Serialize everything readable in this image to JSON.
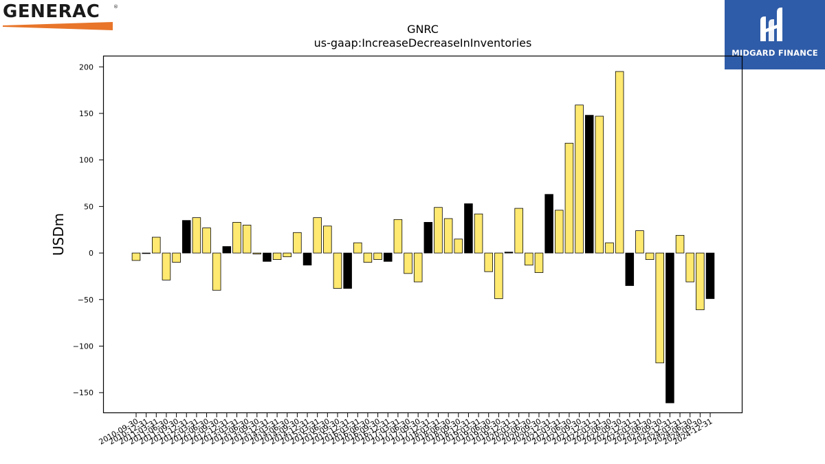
{
  "logos": {
    "left_text": "GENERAC",
    "left_reg": "®",
    "left_accent_color": "#e8752a",
    "right_text": "MIDGARD FINANCE",
    "right_bg_color": "#2f5ca8"
  },
  "chart_data": {
    "type": "bar",
    "title": "GNRC",
    "subtitle": "us-gaap:IncreaseDecreaseInInventories",
    "xlabel": "",
    "ylabel": "USDm",
    "ylim": [
      -172,
      212
    ],
    "yticks": [
      -150,
      -100,
      -50,
      0,
      50,
      100,
      150,
      200
    ],
    "grid": false,
    "colors": {
      "quarter": "#ffe970",
      "fiscal_year_end": "#000000",
      "edge": "#000000"
    },
    "categories": [
      "2010-09-30",
      "2010-12-31",
      "2011-03-31",
      "2011-06-30",
      "2011-09-30",
      "2011-12-31",
      "2012-03-31",
      "2012-06-30",
      "2012-09-30",
      "2012-12-31",
      "2013-03-31",
      "2013-06-30",
      "2013-09-30",
      "2013-12-31",
      "2014-03-31",
      "2014-06-30",
      "2014-09-30",
      "2014-12-31",
      "2015-03-31",
      "2015-06-30",
      "2015-09-30",
      "2015-12-31",
      "2016-03-31",
      "2016-06-30",
      "2016-09-30",
      "2016-12-31",
      "2017-03-31",
      "2017-06-30",
      "2017-09-30",
      "2017-12-31",
      "2018-03-31",
      "2018-06-30",
      "2018-09-30",
      "2018-12-31",
      "2019-03-31",
      "2019-06-30",
      "2019-09-30",
      "2019-12-31",
      "2020-03-31",
      "2020-06-30",
      "2020-09-30",
      "2020-12-31",
      "2021-03-31",
      "2021-06-30",
      "2021-09-30",
      "2021-12-31",
      "2022-03-31",
      "2022-06-30",
      "2022-09-30",
      "2022-12-31",
      "2023-03-31",
      "2023-06-30",
      "2023-09-30",
      "2023-12-31",
      "2024-03-31",
      "2024-06-30",
      "2024-09-30",
      "2024-12-31"
    ],
    "values": [
      -8,
      0,
      17,
      -29,
      -10,
      35,
      38,
      27,
      -40,
      7,
      33,
      30,
      -1,
      -9,
      -7,
      -4,
      22,
      -13,
      38,
      29,
      -38,
      -38,
      11,
      -10,
      -7,
      -9,
      36,
      -22,
      -31,
      33,
      49,
      37,
      15,
      53,
      42,
      -20,
      -49,
      1,
      48,
      -13,
      -21,
      63,
      46,
      118,
      159,
      148,
      147,
      11,
      195,
      -35,
      24,
      -7,
      -118,
      -161,
      19,
      -31,
      -61,
      -49
    ],
    "fiscal_year_end": [
      false,
      false,
      false,
      false,
      false,
      true,
      false,
      false,
      false,
      true,
      false,
      false,
      false,
      true,
      false,
      false,
      false,
      true,
      false,
      false,
      false,
      true,
      false,
      false,
      false,
      true,
      false,
      false,
      false,
      true,
      false,
      false,
      false,
      true,
      false,
      false,
      false,
      true,
      false,
      false,
      false,
      true,
      false,
      false,
      false,
      true,
      false,
      false,
      false,
      true,
      false,
      false,
      false,
      true,
      false,
      false,
      false,
      true
    ]
  }
}
